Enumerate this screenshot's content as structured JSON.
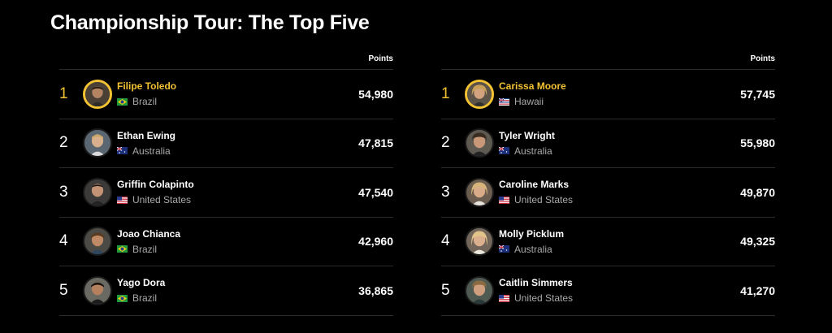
{
  "page": {
    "title": "Championship Tour: The Top Five",
    "accent_color": "#f2c233"
  },
  "boards": [
    {
      "points_label": "Points",
      "rows": [
        {
          "rank": "1",
          "name": "Filipe Toledo",
          "country": "Brazil",
          "flag": "brazil-flag-icon",
          "points": "54,980"
        },
        {
          "rank": "2",
          "name": "Ethan Ewing",
          "country": "Australia",
          "flag": "australia-flag-icon",
          "points": "47,815"
        },
        {
          "rank": "3",
          "name": "Griffin Colapinto",
          "country": "United States",
          "flag": "usa-flag-icon",
          "points": "47,540"
        },
        {
          "rank": "4",
          "name": "Joao Chianca",
          "country": "Brazil",
          "flag": "brazil-flag-icon",
          "points": "42,960"
        },
        {
          "rank": "5",
          "name": "Yago Dora",
          "country": "Brazil",
          "flag": "brazil-flag-icon",
          "points": "36,865"
        }
      ]
    },
    {
      "points_label": "Points",
      "rows": [
        {
          "rank": "1",
          "name": "Carissa Moore",
          "country": "Hawaii",
          "flag": "hawaii-flag-icon",
          "points": "57,745"
        },
        {
          "rank": "2",
          "name": "Tyler Wright",
          "country": "Australia",
          "flag": "australia-flag-icon",
          "points": "55,980"
        },
        {
          "rank": "3",
          "name": "Caroline Marks",
          "country": "United States",
          "flag": "usa-flag-icon",
          "points": "49,870"
        },
        {
          "rank": "4",
          "name": "Molly Picklum",
          "country": "Australia",
          "flag": "australia-flag-icon",
          "points": "49,325"
        },
        {
          "rank": "5",
          "name": "Caitlin Simmers",
          "country": "United States",
          "flag": "usa-flag-icon",
          "points": "41,270"
        }
      ]
    }
  ]
}
